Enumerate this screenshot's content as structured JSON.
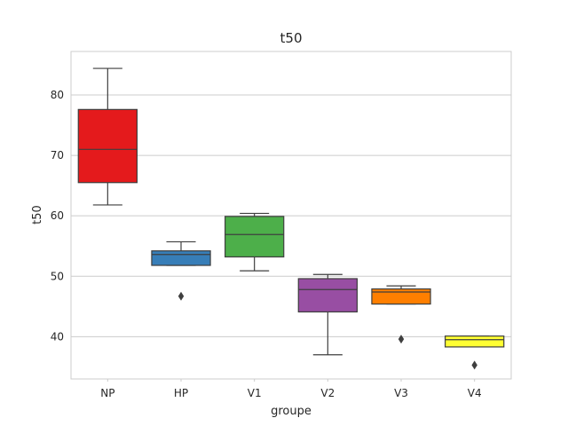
{
  "chart_data": {
    "type": "box",
    "title": "t50",
    "xlabel": "groupe",
    "ylabel": "t50",
    "ylim": [
      33,
      87.2
    ],
    "yticks": [
      40,
      50,
      60,
      70,
      80
    ],
    "grid": "horizontal",
    "categories": [
      "NP",
      "HP",
      "V1",
      "V2",
      "V3",
      "V4"
    ],
    "boxes": [
      {
        "name": "NP",
        "color": "#e41a1c",
        "whisker_low": 61.8,
        "q1": 65.5,
        "median": 71.0,
        "q3": 77.6,
        "whisker_high": 84.4,
        "outliers": []
      },
      {
        "name": "HP",
        "color": "#377eb8",
        "whisker_low": 51.8,
        "q1": 51.8,
        "median": 53.6,
        "q3": 54.2,
        "whisker_high": 55.7,
        "outliers": [
          46.7
        ]
      },
      {
        "name": "V1",
        "color": "#4daf4a",
        "whisker_low": 50.9,
        "q1": 53.2,
        "median": 56.9,
        "q3": 59.9,
        "whisker_high": 60.4,
        "outliers": []
      },
      {
        "name": "V2",
        "color": "#984ea3",
        "whisker_low": 37.0,
        "q1": 44.1,
        "median": 47.8,
        "q3": 49.6,
        "whisker_high": 50.3,
        "outliers": []
      },
      {
        "name": "V3",
        "color": "#ff7f00",
        "whisker_low": 45.4,
        "q1": 45.4,
        "median": 47.4,
        "q3": 47.9,
        "whisker_high": 48.4,
        "outliers": [
          39.6
        ]
      },
      {
        "name": "V4",
        "color": "#ffff33",
        "whisker_low": 38.3,
        "q1": 38.3,
        "median": 39.5,
        "q3": 40.1,
        "whisker_high": 40.1,
        "outliers": [
          35.3
        ]
      }
    ]
  }
}
